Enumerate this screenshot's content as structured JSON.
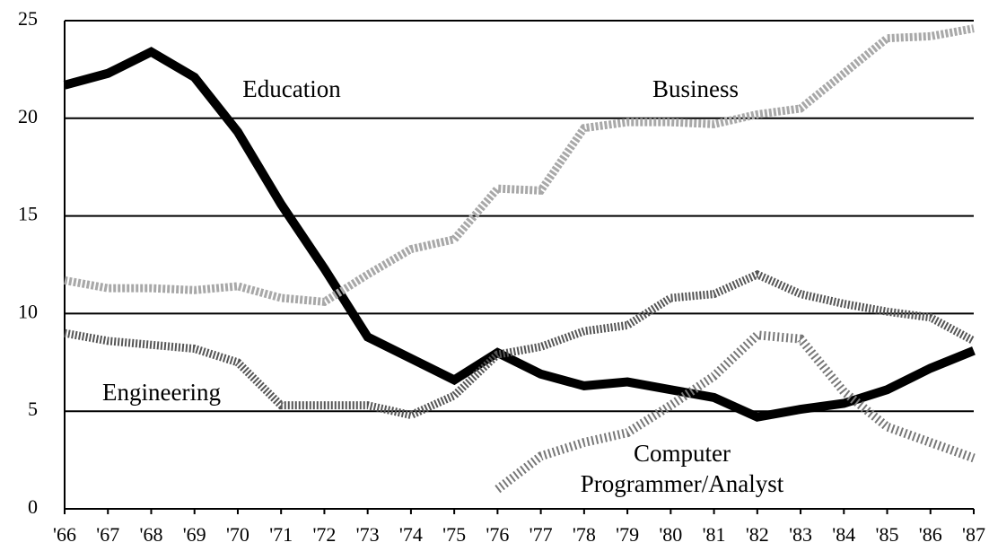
{
  "chart_data": {
    "type": "line",
    "categories": [
      "'66",
      "'67",
      "'68",
      "'69",
      "'70",
      "'71",
      "'72",
      "'73",
      "'74",
      "'75",
      "'76",
      "'77",
      "'78",
      "'79",
      "'80",
      "'81",
      "'82",
      "'83",
      "'84",
      "'85",
      "'86",
      "'87"
    ],
    "series": [
      {
        "name": "Education",
        "color": "#000000",
        "values": [
          21.7,
          22.3,
          23.4,
          22.1,
          19.3,
          15.6,
          12.3,
          8.8,
          7.7,
          6.6,
          8.0,
          6.9,
          6.3,
          6.5,
          6.1,
          5.7,
          4.7,
          5.1,
          5.4,
          6.1,
          7.2,
          8.1
        ]
      },
      {
        "name": "Business",
        "color": "#a8a8a8",
        "values": [
          11.7,
          11.3,
          11.3,
          11.2,
          11.4,
          10.8,
          10.6,
          12.0,
          13.3,
          13.8,
          16.4,
          16.3,
          19.5,
          19.8,
          19.8,
          19.7,
          20.2,
          20.5,
          22.3,
          24.1,
          24.2,
          24.6
        ]
      },
      {
        "name": "Engineering",
        "color": "#555555",
        "values": [
          9.0,
          8.6,
          8.4,
          8.2,
          7.5,
          5.3,
          5.3,
          5.3,
          4.8,
          5.8,
          7.9,
          8.3,
          9.1,
          9.4,
          10.8,
          11.0,
          12.0,
          11.0,
          10.5,
          10.1,
          9.8,
          8.6
        ]
      },
      {
        "name": "Computer Programmer/Analyst",
        "color": "#777777",
        "values": [
          null,
          null,
          null,
          null,
          null,
          null,
          null,
          null,
          null,
          null,
          1.0,
          2.7,
          3.4,
          3.9,
          5.3,
          6.8,
          8.9,
          8.7,
          6.0,
          4.2,
          3.4,
          2.6
        ]
      }
    ],
    "ylim": [
      0,
      25
    ],
    "yticks": [
      0,
      5,
      10,
      15,
      20,
      25
    ],
    "grid": true
  }
}
